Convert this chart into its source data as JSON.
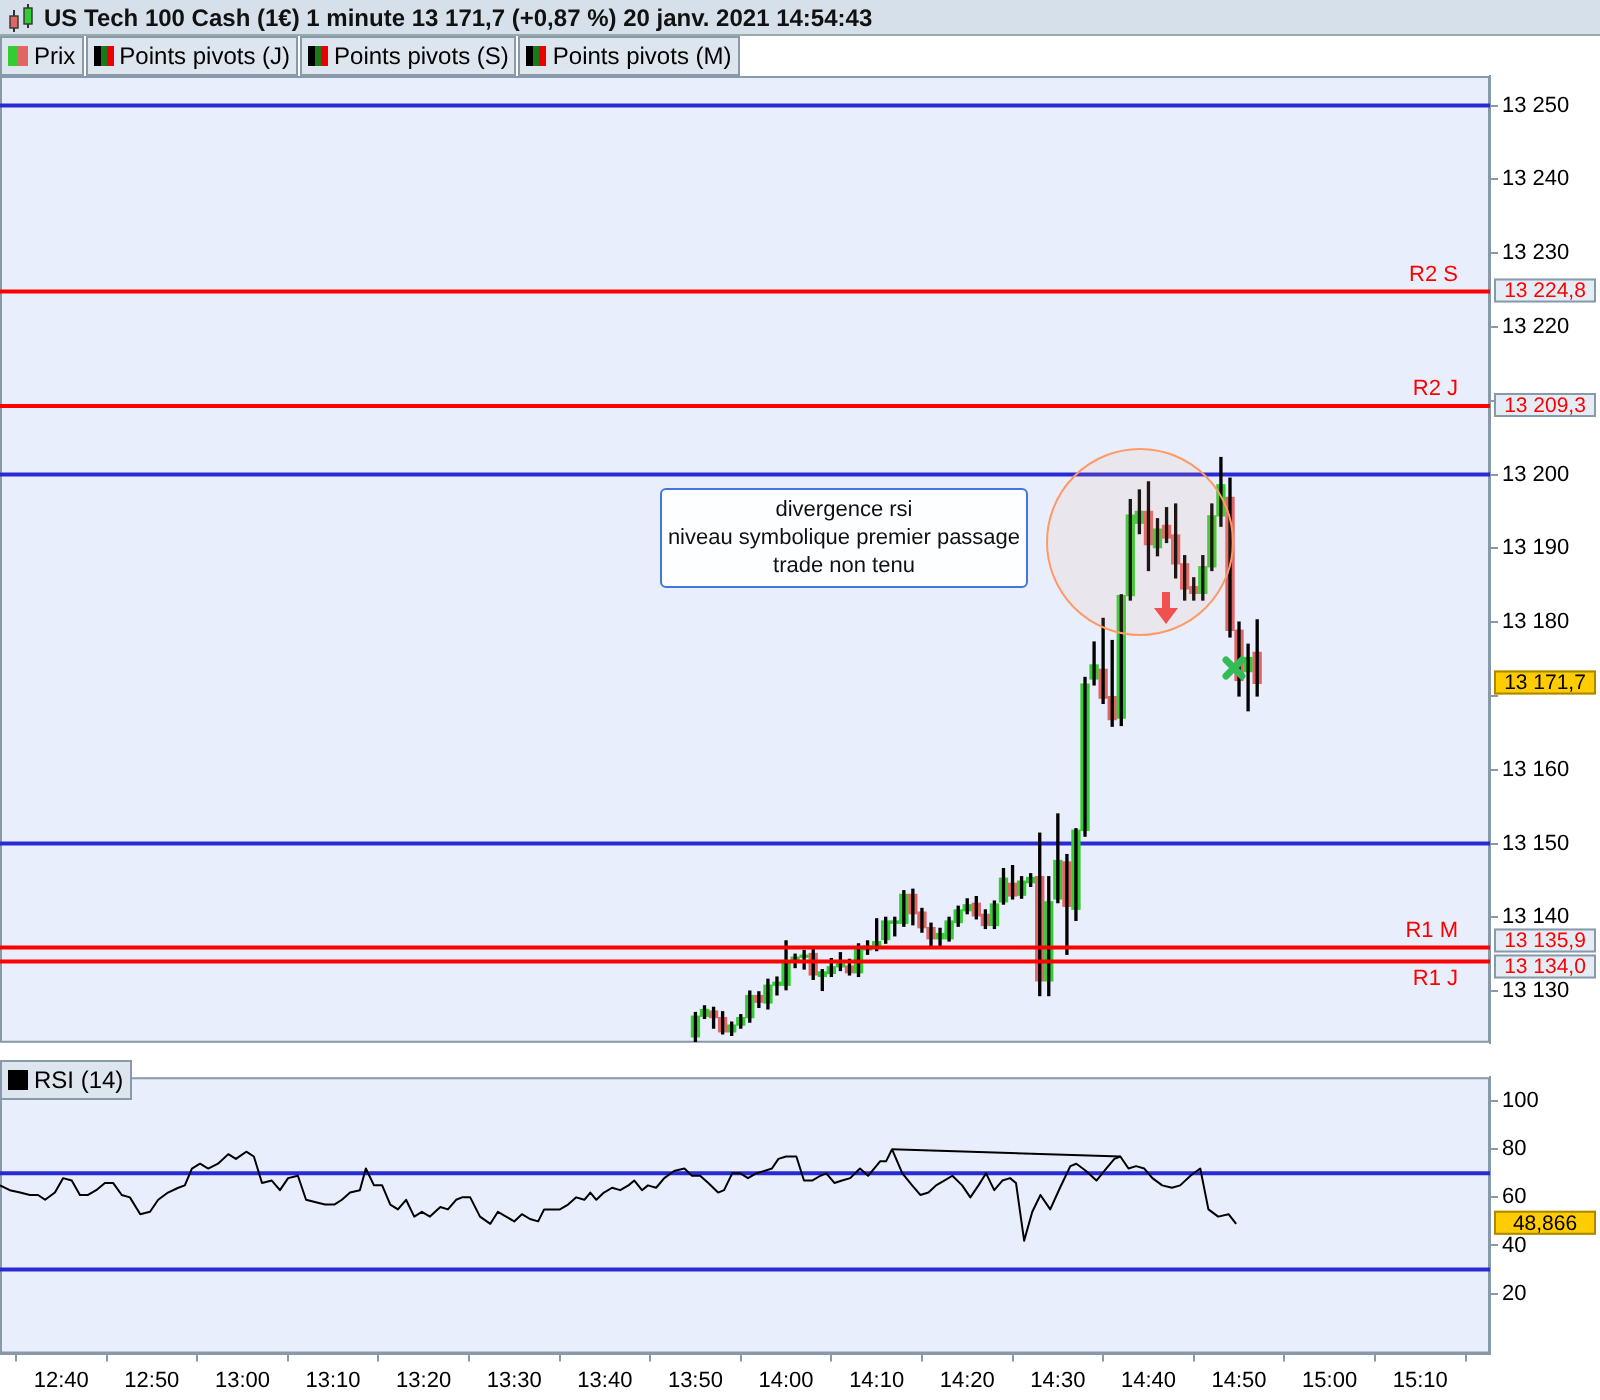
{
  "chart_data": [
    {
      "type": "candlestick",
      "title": "US Tech 100 Cash (1€) 1 minute 13 171,7 (+0,87 %) 20 janv. 2021 14:54:43",
      "legend": "top left",
      "tick_labels": "y",
      "grid": false,
      "xlim": [
        12.554,
        15.295
      ],
      "ylim": [
        13123,
        13254
      ],
      "yticks": [
        {
          "value": 13130,
          "label": "13 130"
        },
        {
          "value": 13140,
          "label": "13 140"
        },
        {
          "value": 13150,
          "label": "13 150"
        },
        {
          "value": 13160,
          "label": "13 160"
        },
        {
          "value": 13170,
          "label": null
        },
        {
          "value": 13180,
          "label": "13 180"
        },
        {
          "value": 13190,
          "label": "13 190"
        },
        {
          "value": 13200,
          "label": "13 200"
        },
        {
          "value": 13210,
          "label": null
        },
        {
          "value": 13220,
          "label": "13 220"
        },
        {
          "value": 13230,
          "label": "13 230"
        },
        {
          "value": 13240,
          "label": "13 240"
        },
        {
          "value": 13250,
          "label": "13 250"
        }
      ],
      "series": [
        {
          "name": "Prix",
          "x": [
            13.8333,
            13.85,
            13.8667,
            13.8833,
            13.9,
            13.9167,
            13.9333,
            13.95,
            13.9667,
            13.9833,
            14,
            14.0167,
            14.0333,
            14.05,
            14.0667,
            14.0833,
            14.1,
            14.1167,
            14.1333,
            14.15,
            14.1667,
            14.1833,
            14.2,
            14.2167,
            14.2333,
            14.25,
            14.2667,
            14.2833,
            14.3,
            14.3167,
            14.3333,
            14.35,
            14.3667,
            14.3833,
            14.4,
            14.4167,
            14.4333,
            14.45,
            14.4667,
            14.4833,
            14.5,
            14.5167,
            14.5333,
            14.55,
            14.5667,
            14.5833,
            14.6,
            14.6167,
            14.6333,
            14.65,
            14.6667,
            14.6833,
            14.7,
            14.7167,
            14.7333,
            14.75,
            14.7667,
            14.7833,
            14.8,
            14.8167,
            14.8333,
            14.85,
            14.8667
          ],
          "ohlc": [
            [
              13123.8,
              13127.1,
              13123.2,
              13126.6
            ],
            [
              13126.6,
              13128.0,
              13126.3,
              13127.5
            ],
            [
              13127.3,
              13127.8,
              13125.0,
              13126.4
            ],
            [
              13126.4,
              13127.2,
              13124.2,
              13124.5
            ],
            [
              13124.5,
              13125.8,
              13124.0,
              13125.4
            ],
            [
              13125.4,
              13126.8,
              13125.0,
              13126.4
            ],
            [
              13126.4,
              13130.0,
              13125.8,
              13129.4
            ],
            [
              13129.4,
              13129.9,
              13127.8,
              13128.5
            ],
            [
              13128.4,
              13131.6,
              13127.6,
              13130.8
            ],
            [
              13130.8,
              13131.9,
              13129.5,
              13131.2
            ],
            [
              13130.8,
              13136.8,
              13130.2,
              13134.0
            ],
            [
              13134.0,
              13135.0,
              13133.2,
              13134.6
            ],
            [
              13134.6,
              13135.5,
              13133.0,
              13134.8
            ],
            [
              13135.1,
              13135.6,
              13131.6,
              13132.2
            ],
            [
              13132.0,
              13132.9,
              13130.1,
              13132.6
            ],
            [
              13132.4,
              13134.4,
              13132.0,
              13133.3
            ],
            [
              13133.3,
              13135.2,
              13132.8,
              13133.7
            ],
            [
              13133.4,
              13134.3,
              13132.2,
              13132.5
            ],
            [
              13132.5,
              13136.4,
              13132.0,
              13135.6
            ],
            [
              13135.6,
              13136.8,
              13135.0,
              13136.1
            ],
            [
              13136.1,
              13139.8,
              13135.5,
              13136.7
            ],
            [
              13137.0,
              13140.0,
              13136.5,
              13139.5
            ],
            [
              13139.2,
              13140.0,
              13137.5,
              13139.5
            ],
            [
              13139.2,
              13143.6,
              13138.8,
              13143.1
            ],
            [
              13143.1,
              13143.8,
              13139.0,
              13140.5
            ],
            [
              13140.7,
              13141.2,
              13138.0,
              13138.6
            ],
            [
              13138.6,
              13139.2,
              13136.0,
              13137.1
            ],
            [
              13137.1,
              13138.5,
              13136.0,
              13137.8
            ],
            [
              13137.1,
              13140.0,
              13136.8,
              13139.5
            ],
            [
              13139.3,
              13141.5,
              13138.8,
              13141.0
            ],
            [
              13140.9,
              13142.5,
              13140.5,
              13141.7
            ],
            [
              13141.9,
              13142.8,
              13139.8,
              13140.2
            ],
            [
              13140.4,
              13141.0,
              13138.5,
              13138.9
            ],
            [
              13138.9,
              13142.2,
              13138.5,
              13141.8
            ],
            [
              13142.1,
              13146.6,
              13141.8,
              13145.3
            ],
            [
              13144.6,
              13147.0,
              13142.5,
              13142.9
            ],
            [
              13143.0,
              13145.5,
              13142.6,
              13144.9
            ],
            [
              13144.7,
              13145.9,
              13144.2,
              13145.4
            ],
            [
              13145.5,
              13151.4,
              13129.4,
              13131.4
            ],
            [
              13131.4,
              13145.5,
              13129.4,
              13142.1
            ],
            [
              13142.5,
              13154.0,
              13142.0,
              13147.7
            ],
            [
              13147.5,
              13148.5,
              13135.0,
              13141.5
            ],
            [
              13141.1,
              13152.0,
              13139.6,
              13151.8
            ],
            [
              13151.8,
              13172.5,
              13151.0,
              13171.6
            ],
            [
              13172.3,
              13177.3,
              13171.5,
              13174.2
            ],
            [
              13173.6,
              13180.5,
              13169.0,
              13169.7
            ],
            [
              13169.9,
              13177.5,
              13165.9,
              13166.8
            ],
            [
              13167.0,
              13183.7,
              13166.0,
              13183.6
            ],
            [
              13183.6,
              13196.6,
              13183.0,
              13194.5
            ],
            [
              13193.4,
              13197.9,
              13192.0,
              13195.0
            ],
            [
              13195.0,
              13199.0,
              13187.0,
              13190.5
            ],
            [
              13190.1,
              13194.0,
              13189.0,
              13192.6
            ],
            [
              13193.1,
              13195.5,
              13190.8,
              13191.4
            ],
            [
              13191.8,
              13196.0,
              13186.0,
              13187.9
            ],
            [
              13187.9,
              13189.0,
              13183.0,
              13184.5
            ],
            [
              13184.8,
              13186.0,
              13183.0,
              13183.9
            ],
            [
              13183.9,
              13189.0,
              13183.0,
              13187.5
            ],
            [
              13187.5,
              13196.0,
              13187.0,
              13194.4
            ],
            [
              13194.4,
              13202.3,
              13193.0,
              13198.6
            ],
            [
              13196.9,
              13199.5,
              13178.0,
              13178.9
            ],
            [
              13178.9,
              13180.0,
              13170.0,
              13172.1
            ],
            [
              13173.3,
              13177.0,
              13168.0,
              13175.2
            ],
            [
              13175.9,
              13180.3,
              13170.0,
              13171.7
            ]
          ],
          "value_labels": [
            null,
            null,
            null,
            null,
            null,
            null,
            null,
            null,
            null,
            null,
            null,
            null,
            null,
            null,
            null,
            null,
            null,
            null,
            null,
            null,
            null,
            null,
            null,
            null,
            null,
            null,
            null,
            null,
            null,
            null,
            null,
            null,
            null,
            null,
            null,
            null,
            null,
            null,
            null,
            null,
            null,
            null,
            null,
            null,
            null,
            null,
            null,
            null,
            null,
            null,
            null,
            null,
            null,
            null,
            null,
            null,
            null,
            null,
            null,
            null,
            null,
            null,
            "13 171,7"
          ]
        },
        {
          "name": "R2 S",
          "type": "line",
          "color": "#ff0000",
          "x": [
            12.554,
            15.295
          ],
          "values": [
            13224.8,
            13224.8
          ],
          "value_labels": [
            null,
            "13 224,8"
          ]
        },
        {
          "name": "R2 J",
          "type": "line",
          "color": "#ff0000",
          "x": [
            12.554,
            15.295
          ],
          "values": [
            13209.3,
            13209.3
          ],
          "value_labels": [
            null,
            "13 209,3"
          ]
        },
        {
          "name": "R1 M",
          "type": "line",
          "color": "#ff0000",
          "x": [
            12.554,
            15.295
          ],
          "values": [
            13135.9,
            13135.9
          ],
          "value_labels": [
            null,
            "13 135,9"
          ]
        },
        {
          "name": "R1 J",
          "type": "line",
          "color": "#ff0000",
          "x": [
            12.554,
            15.295
          ],
          "values": [
            13134.0,
            13134.0
          ],
          "value_labels": [
            null,
            "13 134,0"
          ]
        }
      ],
      "ref_lines": [
        {
          "axis": "y",
          "value": 13250,
          "color": "#2a2ad4"
        },
        {
          "axis": "y",
          "value": 13200,
          "color": "#2a2ad4"
        },
        {
          "axis": "y",
          "value": 13150,
          "color": "#2a2ad4"
        }
      ],
      "annotations": [
        "Points pivots (J)",
        "Points pivots (S)",
        "Points pivots (M)",
        "divergence rsi\nniveau symbolique premier passage\ntrade non tenu"
      ]
    },
    {
      "type": "line",
      "legend": "top left",
      "grid": false,
      "marker": "none",
      "xlim": [
        12.554,
        15.295
      ],
      "xticks": [
        {
          "value": 12.6667,
          "label": "12:40"
        },
        {
          "value": 12.8333,
          "label": "12:50"
        },
        {
          "value": 13,
          "label": "13:00"
        },
        {
          "value": 13.1667,
          "label": "13:10"
        },
        {
          "value": 13.3333,
          "label": "13:20"
        },
        {
          "value": 13.5,
          "label": "13:30"
        },
        {
          "value": 13.6667,
          "label": "13:40"
        },
        {
          "value": 13.8333,
          "label": "13:50"
        },
        {
          "value": 14,
          "label": "14:00"
        },
        {
          "value": 14.1667,
          "label": "14:10"
        },
        {
          "value": 14.3333,
          "label": "14:20"
        },
        {
          "value": 14.5,
          "label": "14:30"
        },
        {
          "value": 14.6667,
          "label": "14:40"
        },
        {
          "value": 14.8333,
          "label": "14:50"
        },
        {
          "value": 15,
          "label": "15:00"
        },
        {
          "value": 15.1667,
          "label": "15:10"
        }
      ],
      "ylim": [
        -5,
        110
      ],
      "yticks": [
        20,
        40,
        60,
        80,
        100
      ],
      "series": [
        {
          "name": "RSI (14)",
          "color": "#000000",
          "x": [
            12.554,
            12.572,
            12.591,
            12.609,
            12.624,
            12.637,
            12.655,
            12.67,
            12.686,
            12.701,
            12.716,
            12.731,
            12.747,
            12.762,
            12.778,
            12.793,
            12.812,
            12.83,
            12.845,
            12.863,
            12.882,
            12.894,
            12.907,
            12.922,
            12.937,
            12.955,
            12.974,
            12.988,
            13.007,
            13.021,
            13.036,
            13.054,
            13.069,
            13.084,
            13.102,
            13.117,
            13.135,
            13.152,
            13.169,
            13.183,
            13.198,
            13.216,
            13.227,
            13.242,
            13.257,
            13.272,
            13.286,
            13.301,
            13.316,
            13.33,
            13.345,
            13.364,
            13.378,
            13.393,
            13.404,
            13.419,
            13.437,
            13.456,
            13.47,
            13.485,
            13.5,
            13.514,
            13.529,
            13.544,
            13.555,
            13.57,
            13.584,
            13.599,
            13.614,
            13.629,
            13.64,
            13.651,
            13.665,
            13.68,
            13.695,
            13.71,
            13.721,
            13.735,
            13.746,
            13.761,
            13.776,
            13.794,
            13.813,
            13.827,
            13.842,
            13.857,
            13.875,
            13.886,
            13.901,
            13.916,
            13.93,
            13.945,
            13.96,
            13.974,
            13.986,
            14.0,
            14.019,
            14.033,
            14.048,
            14.063,
            14.074,
            14.089,
            14.103,
            14.118,
            14.136,
            14.151,
            14.162,
            14.173,
            14.184,
            14.195,
            14.214,
            14.232,
            14.247,
            14.262,
            14.276,
            14.291,
            14.306,
            14.324,
            14.339,
            14.354,
            14.368,
            14.383,
            14.398,
            14.412,
            14.423,
            14.438,
            14.453,
            14.468,
            14.486,
            14.504,
            14.523,
            14.534,
            14.552,
            14.571,
            14.589,
            14.604,
            14.615,
            14.63,
            14.644,
            14.659,
            14.674,
            14.692,
            14.71,
            14.725,
            14.744,
            14.762,
            14.777,
            14.795,
            14.814,
            14.828
          ],
          "values": [
            65,
            63,
            62,
            61,
            61,
            59,
            62,
            68,
            67,
            61,
            61,
            63,
            66,
            66,
            61,
            60,
            53,
            54,
            59,
            62,
            64,
            65,
            72,
            74,
            72,
            74,
            78,
            76,
            79,
            77,
            66,
            67,
            63,
            68,
            69,
            59,
            58,
            57,
            57,
            59,
            62,
            63,
            72,
            65,
            65,
            57,
            55,
            59,
            52,
            54,
            52,
            56,
            55,
            59,
            60,
            60,
            52,
            49,
            54,
            52,
            50,
            53,
            51,
            50,
            55,
            55,
            55,
            57,
            60,
            59,
            62,
            59,
            62,
            64,
            63,
            65,
            67,
            63,
            65,
            64,
            68,
            71,
            72,
            69,
            69,
            66,
            62,
            63,
            70,
            70,
            68,
            70,
            71,
            72,
            76,
            77,
            77,
            67,
            67,
            69,
            70,
            66,
            67,
            68,
            72,
            69,
            72,
            75,
            75,
            80,
            70,
            65,
            61,
            62,
            65,
            67,
            69,
            65,
            60,
            65,
            70,
            63,
            67,
            68,
            66,
            42,
            54,
            61,
            55,
            64,
            73,
            74,
            71,
            67,
            72,
            76,
            77,
            72,
            73,
            72,
            68,
            65,
            64,
            65,
            69,
            72,
            55,
            52,
            53,
            49
          ]
        },
        {
          "type": "line",
          "color": "#000000",
          "x": [
            14.195,
            14.615
          ],
          "values": [
            80,
            77
          ]
        }
      ],
      "ref_lines": [
        {
          "axis": "y",
          "value": 70,
          "color": "#2a2ad4"
        },
        {
          "axis": "y",
          "value": 30,
          "color": "#2a2ad4"
        }
      ],
      "annotations": [
        "48,866"
      ]
    }
  ]
}
